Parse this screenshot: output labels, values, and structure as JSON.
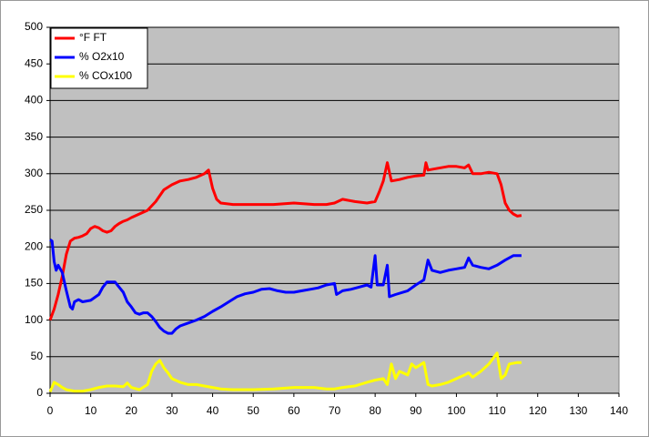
{
  "chart_data": {
    "type": "line",
    "xlim": [
      0,
      140
    ],
    "xticks": [
      0,
      10,
      20,
      30,
      40,
      50,
      60,
      70,
      80,
      90,
      100,
      110,
      120,
      130,
      140
    ],
    "ylim": [
      0,
      500
    ],
    "yticks": [
      0,
      50,
      100,
      150,
      200,
      250,
      300,
      350,
      400,
      450,
      500
    ],
    "grid": true,
    "legend": "top-left",
    "series": [
      {
        "name": "°F FT",
        "color": "#ff0000",
        "x": [
          0,
          1,
          2,
          3,
          4,
          5,
          6,
          7,
          8,
          9,
          10,
          11,
          12,
          13,
          14,
          15,
          16,
          17,
          18,
          19,
          20,
          22,
          24,
          26,
          28,
          30,
          32,
          34,
          36,
          38,
          39,
          40,
          41,
          42,
          45,
          50,
          55,
          60,
          65,
          68,
          70,
          72,
          75,
          78,
          80,
          81,
          82,
          83,
          84,
          86,
          88,
          90,
          92,
          92.5,
          93,
          95,
          98,
          100,
          102,
          103,
          104,
          106,
          108,
          110,
          111,
          112,
          113,
          114,
          115,
          116
        ],
        "values": [
          100,
          115,
          135,
          160,
          190,
          208,
          212,
          213,
          215,
          218,
          225,
          228,
          226,
          222,
          220,
          222,
          228,
          232,
          235,
          237,
          240,
          245,
          250,
          262,
          278,
          285,
          290,
          292,
          295,
          300,
          305,
          280,
          265,
          260,
          258,
          258,
          258,
          260,
          258,
          258,
          260,
          265,
          262,
          260,
          262,
          275,
          290,
          315,
          290,
          292,
          295,
          297,
          298,
          315,
          305,
          307,
          310,
          310,
          308,
          312,
          300,
          300,
          302,
          300,
          285,
          260,
          250,
          245,
          242,
          243
        ]
      },
      {
        "name": "% O2x10",
        "color": "#0000ff",
        "x": [
          0,
          0.5,
          1,
          1.5,
          2,
          3,
          4,
          5,
          5.5,
          6,
          7,
          8,
          10,
          12,
          13,
          14,
          16,
          17,
          18,
          19,
          20,
          21,
          22,
          23,
          24,
          25,
          26,
          27,
          28,
          29,
          30,
          31,
          32,
          34,
          36,
          38,
          40,
          42,
          44,
          46,
          48,
          50,
          52,
          54,
          56,
          58,
          60,
          62,
          64,
          66,
          68,
          70,
          70.5,
          72,
          74,
          76,
          78,
          79,
          80,
          80.5,
          82,
          83,
          83.5,
          85,
          88,
          90,
          92,
          93,
          94,
          96,
          98,
          100,
          102,
          103,
          104,
          106,
          108,
          110,
          112,
          114,
          116
        ],
        "values": [
          210,
          208,
          180,
          168,
          175,
          165,
          140,
          118,
          115,
          125,
          128,
          125,
          127,
          135,
          145,
          152,
          152,
          145,
          138,
          125,
          118,
          110,
          108,
          110,
          110,
          105,
          98,
          90,
          85,
          82,
          82,
          88,
          92,
          96,
          100,
          105,
          112,
          118,
          125,
          132,
          136,
          138,
          142,
          143,
          140,
          138,
          138,
          140,
          142,
          144,
          148,
          150,
          135,
          140,
          142,
          145,
          148,
          145,
          188,
          148,
          148,
          175,
          132,
          135,
          140,
          148,
          155,
          182,
          168,
          165,
          168,
          170,
          172,
          185,
          175,
          172,
          170,
          175,
          182,
          188,
          188
        ]
      },
      {
        "name": "% COx100",
        "color": "#ffff00",
        "x": [
          0,
          1,
          2,
          3,
          4,
          6,
          8,
          10,
          12,
          14,
          16,
          18,
          19,
          20,
          22,
          24,
          25,
          26,
          27,
          28,
          29,
          30,
          32,
          34,
          36,
          38,
          40,
          42,
          45,
          50,
          55,
          60,
          65,
          68,
          70,
          72,
          75,
          78,
          80,
          82,
          83,
          84,
          85,
          86,
          88,
          89,
          90,
          92,
          93,
          94,
          96,
          98,
          100,
          102,
          103,
          104,
          106,
          108,
          110,
          111,
          112,
          113,
          115,
          116
        ],
        "values": [
          2,
          15,
          12,
          8,
          5,
          3,
          3,
          5,
          8,
          10,
          10,
          9,
          14,
          8,
          5,
          12,
          30,
          40,
          45,
          35,
          28,
          20,
          15,
          12,
          12,
          10,
          8,
          6,
          5,
          5,
          6,
          8,
          8,
          6,
          6,
          8,
          10,
          15,
          18,
          20,
          12,
          40,
          20,
          30,
          25,
          40,
          35,
          42,
          12,
          10,
          12,
          15,
          20,
          25,
          28,
          22,
          30,
          40,
          55,
          20,
          25,
          40,
          42,
          42
        ]
      }
    ]
  }
}
